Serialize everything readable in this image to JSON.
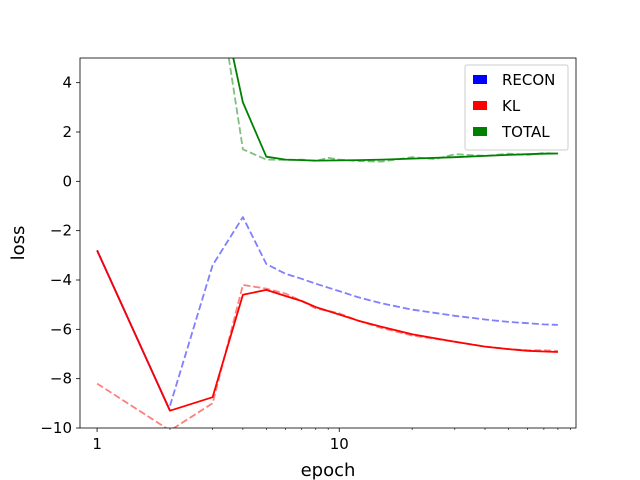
{
  "chart_data": {
    "type": "line",
    "xlabel": "epoch",
    "ylabel": "loss",
    "xscale": "log",
    "xlim": [
      0.85,
      95
    ],
    "ylim": [
      -10,
      5
    ],
    "x_ticks": [
      {
        "value": 1,
        "label": "1"
      },
      {
        "value": 10,
        "label": "10"
      }
    ],
    "y_ticks": [
      {
        "value": -10,
        "label": "−10"
      },
      {
        "value": -8,
        "label": "−8"
      },
      {
        "value": -6,
        "label": "−6"
      },
      {
        "value": -4,
        "label": "−4"
      },
      {
        "value": -2,
        "label": "−2"
      },
      {
        "value": 0,
        "label": "0"
      },
      {
        "value": 2,
        "label": "2"
      },
      {
        "value": 4,
        "label": "4"
      }
    ],
    "legend_position": "top-right",
    "legend": [
      {
        "label": "RECON",
        "color": "#0000ff"
      },
      {
        "label": "KL",
        "color": "#ff0000"
      },
      {
        "label": "TOTAL",
        "color": "#008000"
      }
    ],
    "series": [
      {
        "name": "RECON",
        "style": "solid",
        "color": "#0000ff",
        "opacity": 1,
        "x": [
          1,
          2
        ],
        "y": [
          -2.8,
          -9.3
        ]
      },
      {
        "name": "RECON",
        "style": "dashed",
        "color": "#0000ff",
        "opacity": 0.5,
        "x": [
          2,
          3,
          4,
          5,
          6,
          7,
          8,
          10,
          12,
          15,
          20,
          30,
          40,
          50,
          60,
          70,
          80
        ],
        "y": [
          -9.1,
          -3.4,
          -1.45,
          -3.35,
          -3.75,
          -3.95,
          -4.15,
          -4.45,
          -4.7,
          -4.95,
          -5.2,
          -5.45,
          -5.6,
          -5.7,
          -5.75,
          -5.8,
          -5.82
        ]
      },
      {
        "name": "KL",
        "style": "solid",
        "color": "#ff0000",
        "opacity": 1,
        "x": [
          1,
          2,
          3,
          4,
          5,
          6,
          7,
          8,
          10,
          12,
          15,
          20,
          30,
          40,
          50,
          60,
          70,
          80
        ],
        "y": [
          -2.8,
          -9.3,
          -8.75,
          -4.6,
          -4.4,
          -4.65,
          -4.85,
          -5.1,
          -5.4,
          -5.65,
          -5.9,
          -6.2,
          -6.5,
          -6.7,
          -6.8,
          -6.87,
          -6.9,
          -6.92
        ]
      },
      {
        "name": "KL",
        "style": "dashed",
        "color": "#ff0000",
        "opacity": 0.5,
        "x": [
          1,
          2,
          3,
          4,
          5,
          6,
          7,
          8,
          10,
          12,
          15,
          20,
          30,
          40,
          50,
          60,
          70,
          80
        ],
        "y": [
          -8.2,
          -10.1,
          -9.0,
          -4.2,
          -4.35,
          -4.55,
          -4.85,
          -5.15,
          -5.35,
          -5.65,
          -5.95,
          -6.25,
          -6.5,
          -6.7,
          -6.8,
          -6.85,
          -6.85,
          -6.88
        ]
      },
      {
        "name": "TOTAL",
        "style": "solid",
        "color": "#008000",
        "opacity": 1,
        "x": [
          3.65,
          4,
          5,
          6,
          7,
          8,
          10,
          12,
          15,
          20,
          30,
          40,
          50,
          60,
          70,
          80
        ],
        "y": [
          5,
          3.2,
          1.0,
          0.88,
          0.86,
          0.84,
          0.85,
          0.86,
          0.88,
          0.92,
          0.98,
          1.03,
          1.07,
          1.1,
          1.12,
          1.13
        ]
      },
      {
        "name": "TOTAL",
        "style": "dashed",
        "color": "#008000",
        "opacity": 0.5,
        "x": [
          3.5,
          4,
          5,
          6,
          7,
          8,
          9,
          10,
          12,
          15,
          20,
          25,
          30,
          40,
          50,
          60,
          70,
          80
        ],
        "y": [
          5,
          1.3,
          0.88,
          0.87,
          0.88,
          0.83,
          0.95,
          0.88,
          0.82,
          0.8,
          0.98,
          0.9,
          1.1,
          1.03,
          1.12,
          1.07,
          1.15,
          1.12
        ]
      }
    ]
  }
}
